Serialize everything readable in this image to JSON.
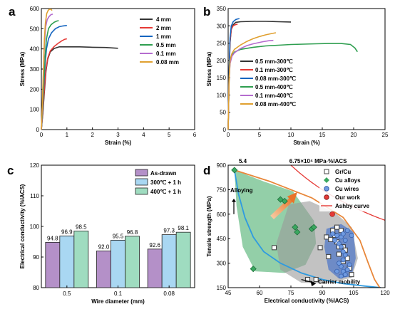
{
  "panels": {
    "a": "a",
    "b": "b",
    "c": "c",
    "d": "d"
  },
  "chart_data": [
    {
      "panel": "a",
      "type": "line",
      "xlabel": "Strain (%)",
      "ylabel": "Stress (MPa)",
      "xlim": [
        0,
        6
      ],
      "ylim": [
        0,
        600
      ],
      "xticks": [
        0,
        1,
        2,
        3,
        4,
        5,
        6
      ],
      "yticks": [
        0,
        100,
        200,
        300,
        400,
        500,
        600
      ],
      "legend_position": "top-right",
      "series": [
        {
          "name": "4 mm",
          "color": "#333333",
          "points": [
            [
              0,
              0
            ],
            [
              0.06,
              80
            ],
            [
              0.12,
              190
            ],
            [
              0.18,
              290
            ],
            [
              0.25,
              350
            ],
            [
              0.35,
              385
            ],
            [
              0.5,
              402
            ],
            [
              0.7,
              410
            ],
            [
              1.0,
              410
            ],
            [
              1.5,
              410
            ],
            [
              2.0,
              408
            ],
            [
              2.5,
              407
            ],
            [
              3.0,
              403
            ]
          ]
        },
        {
          "name": "2 mm",
          "color": "#e53935",
          "points": [
            [
              0,
              0
            ],
            [
              0.06,
              90
            ],
            [
              0.12,
              210
            ],
            [
              0.18,
              300
            ],
            [
              0.25,
              355
            ],
            [
              0.35,
              390
            ],
            [
              0.5,
              412
            ],
            [
              0.65,
              427
            ],
            [
              0.8,
              440
            ],
            [
              0.92,
              448
            ],
            [
              1.0,
              450
            ]
          ]
        },
        {
          "name": "1 mm",
          "color": "#1565c0",
          "points": [
            [
              0,
              0
            ],
            [
              0.05,
              100
            ],
            [
              0.1,
              230
            ],
            [
              0.15,
              330
            ],
            [
              0.2,
              400
            ],
            [
              0.28,
              450
            ],
            [
              0.4,
              480
            ],
            [
              0.55,
              500
            ],
            [
              0.7,
              510
            ],
            [
              0.85,
              514
            ],
            [
              1.0,
              516
            ]
          ]
        },
        {
          "name": "0.5 mm",
          "color": "#2e9e4f",
          "points": [
            [
              0,
              0
            ],
            [
              0.05,
              110
            ],
            [
              0.1,
              250
            ],
            [
              0.15,
              370
            ],
            [
              0.2,
              450
            ],
            [
              0.28,
              500
            ],
            [
              0.38,
              520
            ],
            [
              0.5,
              532
            ],
            [
              0.6,
              538
            ],
            [
              0.68,
              540
            ]
          ]
        },
        {
          "name": "0.1 mm",
          "color": "#b56ccf",
          "points": [
            [
              0,
              0
            ],
            [
              0.04,
              120
            ],
            [
              0.08,
              280
            ],
            [
              0.12,
              420
            ],
            [
              0.17,
              510
            ],
            [
              0.23,
              545
            ],
            [
              0.3,
              560
            ],
            [
              0.38,
              570
            ],
            [
              0.45,
              572
            ]
          ]
        },
        {
          "name": "0.08 mm",
          "color": "#e0a030",
          "points": [
            [
              0,
              0
            ],
            [
              0.04,
              130
            ],
            [
              0.08,
              300
            ],
            [
              0.12,
              450
            ],
            [
              0.16,
              530
            ],
            [
              0.21,
              575
            ],
            [
              0.27,
              592
            ],
            [
              0.33,
              597
            ],
            [
              0.38,
              596
            ],
            [
              0.42,
              590
            ]
          ]
        }
      ]
    },
    {
      "panel": "b",
      "type": "line",
      "xlabel": "Strain (%)",
      "ylabel": "Stress (MPa)",
      "xlim": [
        0,
        25
      ],
      "ylim": [
        0,
        350
      ],
      "xticks": [
        0,
        5,
        10,
        15,
        20,
        25
      ],
      "yticks": [
        0,
        50,
        100,
        150,
        200,
        250,
        300,
        350
      ],
      "legend_position": "bottom-left",
      "series": [
        {
          "name": "0.5 mm-300℃",
          "color": "#333333",
          "points": [
            [
              0,
              0
            ],
            [
              0.15,
              150
            ],
            [
              0.3,
              250
            ],
            [
              0.5,
              290
            ],
            [
              0.8,
              303
            ],
            [
              1.2,
              310
            ],
            [
              2,
              312
            ],
            [
              4,
              313
            ],
            [
              6,
              313
            ],
            [
              8,
              312
            ],
            [
              10,
              311
            ]
          ]
        },
        {
          "name": "0.1 mm-300℃",
          "color": "#e53935",
          "points": [
            [
              0,
              0
            ],
            [
              0.15,
              150
            ],
            [
              0.3,
              255
            ],
            [
              0.5,
              290
            ],
            [
              0.8,
              300
            ],
            [
              1.1,
              303
            ],
            [
              1.3,
              304
            ],
            [
              1.5,
              305
            ]
          ]
        },
        {
          "name": "0.08 mm-300℃",
          "color": "#1565c0",
          "points": [
            [
              0,
              0
            ],
            [
              0.15,
              160
            ],
            [
              0.3,
              265
            ],
            [
              0.5,
              300
            ],
            [
              0.8,
              312
            ],
            [
              1.2,
              318
            ],
            [
              1.5,
              320
            ],
            [
              1.8,
              321
            ]
          ]
        },
        {
          "name": "0.5 mm-400℃",
          "color": "#2e9e4f",
          "points": [
            [
              0,
              0
            ],
            [
              0.15,
              140
            ],
            [
              0.3,
              195
            ],
            [
              0.6,
              215
            ],
            [
              1,
              224
            ],
            [
              2,
              232
            ],
            [
              4,
              238
            ],
            [
              6,
              242
            ],
            [
              8,
              244
            ],
            [
              10,
              246
            ],
            [
              12,
              247
            ],
            [
              14,
              248
            ],
            [
              16,
              249
            ],
            [
              18,
              249
            ],
            [
              19.5,
              246
            ],
            [
              20.2,
              236
            ],
            [
              20.6,
              225
            ]
          ]
        },
        {
          "name": "0.1 mm-400℃",
          "color": "#b56ccf",
          "points": [
            [
              0,
              0
            ],
            [
              0.15,
              140
            ],
            [
              0.3,
              190
            ],
            [
              0.6,
              212
            ],
            [
              1,
              222
            ],
            [
              2,
              235
            ],
            [
              3,
              243
            ],
            [
              4,
              248
            ],
            [
              5.5,
              254
            ],
            [
              6.5,
              257
            ],
            [
              7.2,
              258
            ]
          ]
        },
        {
          "name": "0.08 mm-400℃",
          "color": "#e0a030",
          "points": [
            [
              0,
              0
            ],
            [
              0.15,
              145
            ],
            [
              0.3,
              200
            ],
            [
              0.6,
              220
            ],
            [
              1,
              232
            ],
            [
              2,
              245
            ],
            [
              3,
              255
            ],
            [
              4,
              263
            ],
            [
              5,
              269
            ],
            [
              6,
              274
            ],
            [
              7,
              278
            ],
            [
              7.6,
              280
            ]
          ]
        }
      ]
    },
    {
      "panel": "c",
      "type": "bar",
      "xlabel": "Wire diameter (mm)",
      "ylabel": "Electrical conductivity (%IACS)",
      "ylim": [
        80,
        120
      ],
      "yticks": [
        80,
        90,
        100,
        110,
        120
      ],
      "categories": [
        "0.5",
        "0.1",
        "0.08"
      ],
      "legend_position": "top-right",
      "series": [
        {
          "name": "As-drawn",
          "color": "#b490c8",
          "values": [
            94.8,
            92.0,
            92.6
          ],
          "labels": [
            "94.8",
            "92.0",
            "92.6"
          ]
        },
        {
          "name": "300℃ + 1 h",
          "color": "#a9d7f2",
          "values": [
            96.9,
            95.5,
            97.3
          ],
          "labels": [
            "96.9",
            "95.5",
            "97.3"
          ]
        },
        {
          "name": "400℃ + 1 h",
          "color": "#9fdcc0",
          "values": [
            98.5,
            96.8,
            98.1
          ],
          "labels": [
            "98.5",
            "96.8",
            "98.1"
          ]
        }
      ]
    },
    {
      "panel": "d",
      "type": "scatter",
      "xlabel": "Electrical conductivity (%IACS)",
      "ylabel": "Tensile strength (MPa)",
      "xlim": [
        45,
        120
      ],
      "ylim": [
        150,
        900
      ],
      "xticks": [
        45,
        60,
        75,
        90,
        105,
        120
      ],
      "yticks": [
        150,
        300,
        450,
        600,
        750,
        900
      ],
      "top_labels": {
        "left": "5.4",
        "right": "6.75×10⁴ MPa·%IACS"
      },
      "annotations": {
        "alloying": "Alloying",
        "carrier": "Carrier mobility"
      },
      "legend_position": "top-right",
      "series": [
        {
          "name": "Gr/Cu",
          "color": "#444444",
          "marker": "square",
          "points": [
            [
              67,
              395
            ],
            [
              83,
              200
            ],
            [
              87,
              200
            ],
            [
              89,
              395
            ],
            [
              92,
              460
            ],
            [
              94,
              445
            ],
            [
              95,
              500
            ],
            [
              96,
              470
            ],
            [
              97,
              430
            ],
            [
              98,
              400
            ],
            [
              99,
              500
            ],
            [
              100,
              400
            ],
            [
              101,
              380
            ],
            [
              100,
              310
            ],
            [
              102,
              330
            ],
            [
              103,
              270
            ],
            [
              104,
              230
            ],
            [
              98,
              355
            ],
            [
              93,
              340
            ],
            [
              97,
              520
            ]
          ]
        },
        {
          "name": "Cu alloys",
          "color": "#3aa860",
          "marker": "diamond",
          "points": [
            [
              48,
              870
            ],
            [
              70,
              690
            ],
            [
              72,
              680
            ],
            [
              77,
              520
            ],
            [
              78,
              490
            ],
            [
              85,
              510
            ],
            [
              57,
              265
            ],
            [
              86,
              520
            ]
          ]
        },
        {
          "name": "Cu wires",
          "color": "#3b6fc4",
          "marker": "circle",
          "points": [
            [
              95,
              480
            ],
            [
              97,
              470
            ],
            [
              99,
              460
            ],
            [
              100,
              480
            ],
            [
              101,
              440
            ],
            [
              98,
              420
            ],
            [
              99,
              400
            ],
            [
              100,
              370
            ],
            [
              101,
              350
            ],
            [
              100,
              320
            ],
            [
              99,
              280
            ],
            [
              100,
              250
            ],
            [
              101,
              230
            ],
            [
              102,
              260
            ],
            [
              103,
              290
            ],
            [
              98,
              300
            ],
            [
              97,
              250
            ],
            [
              99,
              220
            ],
            [
              102,
              500
            ],
            [
              104,
              470
            ],
            [
              96,
              440
            ]
          ]
        },
        {
          "name": "Our work",
          "color": "#e53935",
          "marker": "circle",
          "points": [
            [
              94.8,
              600
            ]
          ]
        },
        {
          "name": "Ashby curve",
          "color": "#e53935",
          "marker": "line",
          "curve_k": 67500
        }
      ],
      "blue_curve": {
        "name": "Carrier mobility",
        "color": "#2f9be0",
        "points": [
          [
            48,
            870
          ],
          [
            50,
            720
          ],
          [
            53,
            580
          ],
          [
            57,
            460
          ],
          [
            62,
            370
          ],
          [
            70,
            300
          ],
          [
            80,
            240
          ],
          [
            90,
            200
          ],
          [
            100,
            175
          ],
          [
            110,
            160
          ],
          [
            118,
            150
          ]
        ]
      },
      "orange_curve": {
        "color": "#e8873a",
        "points": [
          [
            48,
            870
          ],
          [
            65,
            800
          ],
          [
            85,
            700
          ],
          [
            100,
            580
          ],
          [
            108,
            440
          ],
          [
            112,
            300
          ],
          [
            115,
            200
          ],
          [
            118,
            140
          ]
        ]
      }
    }
  ]
}
